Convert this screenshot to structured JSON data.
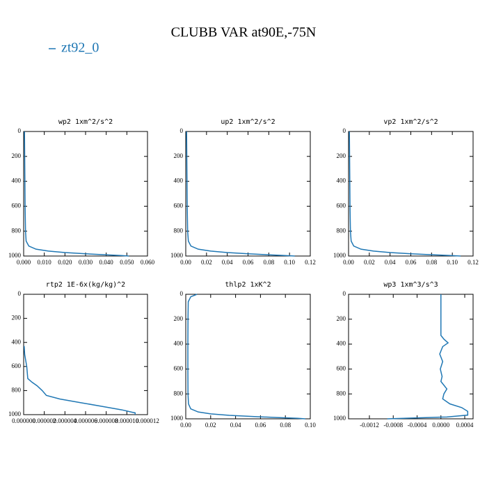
{
  "title": "CLUBB VAR at90E,-75N",
  "chart_data": [
    {
      "type": "line",
      "title": "wp2   1xm^2/s^2",
      "levels": [
        0,
        200,
        400,
        600,
        800,
        880,
        920,
        945,
        960,
        972,
        982,
        990,
        996,
        1000
      ],
      "series": [
        {
          "name": "zt92_0",
          "color": "#1f77b4",
          "values": [
            0.0004,
            0.0005,
            0.0006,
            0.0007,
            0.0009,
            0.0012,
            0.0025,
            0.006,
            0.012,
            0.02,
            0.03,
            0.04,
            0.047,
            0.051
          ]
        }
      ],
      "xlim": [
        0,
        0.06
      ],
      "xticks": [
        {
          "value": 0,
          "label": "0.000"
        },
        {
          "value": 0.01,
          "label": "0.010"
        },
        {
          "value": 0.02,
          "label": "0.020"
        },
        {
          "value": 0.03,
          "label": "0.030"
        },
        {
          "value": 0.04,
          "label": "0.040"
        },
        {
          "value": 0.05,
          "label": "0.050"
        },
        {
          "value": 0.06,
          "label": "0.060"
        }
      ],
      "ylim": [
        0,
        1000
      ],
      "yticks": [
        0,
        200,
        400,
        600,
        800,
        1000
      ],
      "y_inverted": true
    },
    {
      "type": "line",
      "title": "up2   1xm^2/s^2",
      "levels": [
        0,
        200,
        400,
        600,
        800,
        880,
        920,
        945,
        960,
        972,
        982,
        990,
        996,
        1000
      ],
      "series": [
        {
          "name": "zt92_0",
          "color": "#1f77b4",
          "values": [
            0.0008,
            0.001,
            0.0012,
            0.0014,
            0.0018,
            0.0025,
            0.005,
            0.012,
            0.024,
            0.04,
            0.06,
            0.08,
            0.095,
            0.105
          ]
        }
      ],
      "xlim": [
        0,
        0.12
      ],
      "xticks": [
        {
          "value": 0,
          "label": "0.00"
        },
        0.02,
        0.04,
        0.06,
        0.08,
        {
          "value": 0.1,
          "label": "0.10"
        },
        0.12
      ],
      "ylim": [
        0,
        1000
      ],
      "yticks": [
        0,
        200,
        400,
        600,
        800,
        1000
      ],
      "y_inverted": true
    },
    {
      "type": "line",
      "title": "vp2   1xm^2/s^2",
      "levels": [
        0,
        200,
        400,
        600,
        800,
        880,
        920,
        945,
        960,
        972,
        982,
        990,
        996,
        1000
      ],
      "series": [
        {
          "name": "zt92_0",
          "color": "#1f77b4",
          "values": [
            0.0008,
            0.001,
            0.0012,
            0.0014,
            0.0018,
            0.0025,
            0.005,
            0.012,
            0.024,
            0.04,
            0.06,
            0.082,
            0.098,
            0.108
          ]
        }
      ],
      "xlim": [
        0,
        0.12
      ],
      "xticks": [
        {
          "value": 0,
          "label": "0.00"
        },
        0.02,
        0.04,
        0.06,
        0.08,
        {
          "value": 0.1,
          "label": "0.10"
        },
        0.12
      ],
      "ylim": [
        0,
        1000
      ],
      "yticks": [
        0,
        200,
        400,
        600,
        800,
        1000
      ],
      "y_inverted": true
    },
    {
      "type": "line",
      "title": "rtp2   1E-6x(kg/kg)^2",
      "levels": [
        430,
        500,
        600,
        700,
        730,
        760,
        800,
        840,
        870,
        900,
        930,
        960,
        980,
        985,
        1000
      ],
      "series": [
        {
          "name": "zt92_0",
          "color": "#1f77b4",
          "values": [
            5e-08,
            1e-07,
            3e-07,
            4e-07,
            8e-07,
            1.3e-06,
            1.8e-06,
            2.2e-06,
            3.5e-06,
            5.5e-06,
            7.5e-06,
            9.5e-06,
            1.05e-05,
            1.08e-05,
            1.08e-05
          ]
        }
      ],
      "xlim": [
        0,
        1.2e-05
      ],
      "xticks": [
        {
          "value": 0,
          "label": "0.000000"
        },
        2e-06,
        4e-06,
        6e-06,
        8e-06,
        {
          "value": 1e-05,
          "label": "0.000010"
        },
        1.2e-05
      ],
      "ylim": [
        0,
        1000
      ],
      "yticks": [
        0,
        200,
        400,
        600,
        800,
        1000
      ],
      "y_inverted": true
    },
    {
      "type": "line",
      "title": "thlp2   1xK^2",
      "levels": [
        0,
        20,
        60,
        200,
        400,
        600,
        800,
        880,
        920,
        945,
        960,
        972,
        982,
        990,
        996,
        1000
      ],
      "series": [
        {
          "name": "zt92_0",
          "color": "#1f77b4",
          "values": [
            0.009,
            0.004,
            0.002,
            0.0018,
            0.0017,
            0.0017,
            0.0018,
            0.0022,
            0.004,
            0.01,
            0.02,
            0.035,
            0.055,
            0.075,
            0.09,
            0.096
          ]
        }
      ],
      "xlim": [
        0,
        0.1
      ],
      "xticks": [
        {
          "value": 0,
          "label": "0.00"
        },
        0.02,
        0.04,
        0.06,
        0.08,
        {
          "value": 0.1,
          "label": "0.10"
        }
      ],
      "ylim": [
        0,
        1000
      ],
      "yticks": [
        0,
        200,
        400,
        600,
        800,
        1000
      ],
      "y_inverted": true
    },
    {
      "type": "line",
      "title": "wp3   1xm^3/s^3",
      "levels": [
        0,
        330,
        360,
        390,
        420,
        480,
        540,
        600,
        660,
        700,
        760,
        800,
        840,
        880,
        910,
        940,
        970,
        985,
        1000
      ],
      "series": [
        {
          "name": "zt92_0",
          "color": "#1f77b4",
          "values": [
            0,
            0,
            5e-05,
            0.00012,
            3e-05,
            -2e-05,
            3e-05,
            -1e-05,
            2e-05,
            0,
            0.0001,
            5e-05,
            3e-05,
            0.00015,
            0.00035,
            0.00045,
            0.00045,
            0.0001,
            -0.0009
          ]
        }
      ],
      "xlim": [
        -0.00155,
        0.00054
      ],
      "xticks": [
        -0.0012,
        -0.0008,
        -0.0004,
        {
          "value": 0,
          "label": "0.0000"
        },
        0.0004
      ],
      "ylim": [
        0,
        1000
      ],
      "yticks": [
        0,
        200,
        400,
        600,
        800,
        1000
      ],
      "y_inverted": true
    }
  ]
}
